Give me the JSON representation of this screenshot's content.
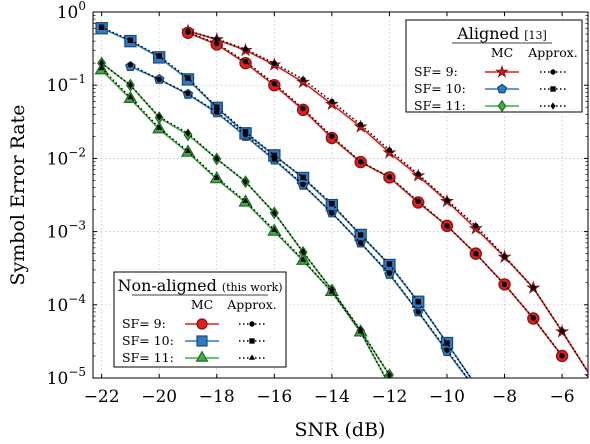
{
  "chart_data": {
    "type": "line",
    "xlabel": "SNR (dB)",
    "ylabel": "Symbol Error Rate",
    "xlim": [
      -22.3,
      -5.1
    ],
    "ylim": [
      1e-05,
      1
    ],
    "yscale": "log",
    "grid": true,
    "x_ticks": [
      {
        "value": -22,
        "label": "−22"
      },
      {
        "value": -20,
        "label": "−20"
      },
      {
        "value": -18,
        "label": "−18"
      },
      {
        "value": -16,
        "label": "−16"
      },
      {
        "value": -14,
        "label": "−14"
      },
      {
        "value": -12,
        "label": "−12"
      },
      {
        "value": -10,
        "label": "−10"
      },
      {
        "value": -8,
        "label": "−8"
      },
      {
        "value": -6,
        "label": "−6"
      }
    ],
    "y_ticks": [
      {
        "value": 1,
        "base": "10",
        "exp": "0"
      },
      {
        "value": 0.1,
        "base": "10",
        "exp": "−1"
      },
      {
        "value": 0.01,
        "base": "10",
        "exp": "−2"
      },
      {
        "value": 0.001,
        "base": "10",
        "exp": "−3"
      },
      {
        "value": 0.0001,
        "base": "10",
        "exp": "−4"
      },
      {
        "value": 1e-05,
        "base": "10",
        "exp": "−5"
      }
    ],
    "colors": {
      "sf9": "#e0201c",
      "sf10": "#2e7bc4",
      "sf11": "#3cb043"
    },
    "legends": {
      "aligned": {
        "title": "Aligned",
        "ref": "[13]",
        "col_mc": "MC",
        "col_approx": "Approx.",
        "rows": [
          {
            "label": "SF= 9:",
            "color": "#e0201c",
            "marker": "star",
            "approx_marker": "circle"
          },
          {
            "label": "SF= 10:",
            "color": "#2e7bc4",
            "marker": "pentagon",
            "approx_marker": "square"
          },
          {
            "label": "SF= 11:",
            "color": "#3cb043",
            "marker": "diamond",
            "approx_marker": "diamond"
          }
        ]
      },
      "nonaligned": {
        "title": "Non-aligned",
        "ref": "(this work)",
        "col_mc": "MC",
        "col_approx": "Approx.",
        "rows": [
          {
            "label": "SF= 9:",
            "color": "#e0201c",
            "marker": "circle",
            "approx_marker": "circle"
          },
          {
            "label": "SF= 10:",
            "color": "#2e7bc4",
            "marker": "square",
            "approx_marker": "square"
          },
          {
            "label": "SF= 11:",
            "color": "#3cb043",
            "marker": "triangle",
            "approx_marker": "triangle"
          }
        ]
      }
    },
    "series": [
      {
        "group": "aligned",
        "kind": "mc",
        "sf": 9,
        "color": "#e0201c",
        "marker": "star",
        "x": [
          -19,
          -18,
          -17,
          -16,
          -15,
          -14,
          -13,
          -12,
          -11,
          -10,
          -9,
          -8,
          -7,
          -6,
          -5
        ],
        "y": [
          0.55,
          0.42,
          0.3,
          0.19,
          0.11,
          0.055,
          0.027,
          0.012,
          0.0058,
          0.0026,
          0.0011,
          0.00045,
          0.00017,
          4.3e-05,
          1.05e-05
        ]
      },
      {
        "group": "aligned",
        "kind": "approx",
        "sf": 9,
        "color": "#000000",
        "marker": "circle",
        "x": [
          -19,
          -18,
          -17,
          -16,
          -15,
          -14,
          -13,
          -12,
          -11,
          -10,
          -9,
          -8,
          -7,
          -6,
          -5
        ],
        "y": [
          0.55,
          0.43,
          0.31,
          0.2,
          0.12,
          0.06,
          0.029,
          0.013,
          0.0061,
          0.0027,
          0.0012,
          0.00046,
          0.00017,
          4.4e-05,
          1.05e-05
        ]
      },
      {
        "group": "aligned",
        "kind": "mc",
        "sf": 10,
        "color": "#2e7bc4",
        "marker": "pentagon",
        "x": [
          -21,
          -20,
          -19,
          -18,
          -17,
          -16,
          -15,
          -14,
          -13,
          -12,
          -11,
          -10,
          -9
        ],
        "y": [
          0.18,
          0.12,
          0.075,
          0.042,
          0.02,
          0.0095,
          0.0043,
          0.0018,
          0.0007,
          0.00026,
          8e-05,
          2.3e-05,
          7e-06
        ]
      },
      {
        "group": "aligned",
        "kind": "approx",
        "sf": 10,
        "color": "#000000",
        "marker": "circle",
        "x": [
          -21,
          -20,
          -19,
          -18,
          -17,
          -16,
          -15,
          -14,
          -13,
          -12,
          -11,
          -10,
          -9
        ],
        "y": [
          0.19,
          0.12,
          0.077,
          0.043,
          0.021,
          0.0098,
          0.0044,
          0.0018,
          0.0007,
          0.00027,
          8e-05,
          2.4e-05,
          7e-06
        ]
      },
      {
        "group": "aligned",
        "kind": "mc",
        "sf": 11,
        "color": "#3cb043",
        "marker": "diamond",
        "x": [
          -22,
          -21,
          -20,
          -19,
          -18,
          -17,
          -16,
          -15,
          -14,
          -13,
          -12
        ],
        "y": [
          0.2,
          0.1,
          0.036,
          0.021,
          0.0098,
          0.0048,
          0.0018,
          0.00052,
          0.00016,
          4.4e-05,
          1.1e-05
        ]
      },
      {
        "group": "aligned",
        "kind": "approx",
        "sf": 11,
        "color": "#000000",
        "marker": "diamond",
        "x": [
          -22,
          -21,
          -20,
          -19,
          -18,
          -17,
          -16,
          -15,
          -14,
          -13,
          -12
        ],
        "y": [
          0.2,
          0.1,
          0.037,
          0.022,
          0.0099,
          0.0048,
          0.0018,
          0.00053,
          0.00016,
          4.5e-05,
          1.1e-05
        ]
      },
      {
        "group": "nonaligned",
        "kind": "mc",
        "sf": 9,
        "color": "#e0201c",
        "marker": "circle",
        "x": [
          -19,
          -18,
          -17,
          -16,
          -15,
          -14,
          -13,
          -12,
          -11,
          -10,
          -9,
          -8,
          -7,
          -6
        ],
        "y": [
          0.52,
          0.36,
          0.2,
          0.1,
          0.046,
          0.019,
          0.0089,
          0.0055,
          0.0025,
          0.0012,
          0.0005,
          0.00019,
          6.5e-05,
          2e-05
        ]
      },
      {
        "group": "nonaligned",
        "kind": "approx",
        "sf": 9,
        "color": "#000000",
        "marker": "circle",
        "x": [
          -19,
          -18,
          -17,
          -16,
          -15,
          -14,
          -13,
          -12,
          -11,
          -10,
          -9,
          -8,
          -7,
          -6
        ],
        "y": [
          0.53,
          0.37,
          0.21,
          0.105,
          0.048,
          0.02,
          0.009,
          0.0056,
          0.0026,
          0.0012,
          0.0005,
          0.00019,
          6.6e-05,
          2e-05
        ]
      },
      {
        "group": "nonaligned",
        "kind": "mc",
        "sf": 10,
        "color": "#2e7bc4",
        "marker": "square",
        "x": [
          -22,
          -21,
          -20,
          -19,
          -18,
          -17,
          -16,
          -15,
          -14,
          -13,
          -12,
          -11,
          -10,
          -9
        ],
        "y": [
          0.6,
          0.4,
          0.24,
          0.12,
          0.049,
          0.022,
          0.011,
          0.0054,
          0.0023,
          0.0009,
          0.00035,
          0.00011,
          3e-05,
          8e-06
        ]
      },
      {
        "group": "nonaligned",
        "kind": "approx",
        "sf": 10,
        "color": "#000000",
        "marker": "square",
        "x": [
          -22,
          -21,
          -20,
          -19,
          -18,
          -17,
          -16,
          -15,
          -14,
          -13,
          -12,
          -11,
          -10,
          -9
        ],
        "y": [
          0.62,
          0.41,
          0.25,
          0.125,
          0.05,
          0.023,
          0.011,
          0.0055,
          0.0024,
          0.0009,
          0.00036,
          0.00011,
          3e-05,
          8e-06
        ]
      },
      {
        "group": "nonaligned",
        "kind": "mc",
        "sf": 11,
        "color": "#3cb043",
        "marker": "triangle",
        "x": [
          -22,
          -21,
          -20,
          -19,
          -18,
          -17,
          -16,
          -15,
          -14,
          -13,
          -12
        ],
        "y": [
          0.16,
          0.065,
          0.025,
          0.012,
          0.0052,
          0.0025,
          0.001,
          0.0004,
          0.00015,
          4.2e-05,
          8e-06
        ]
      },
      {
        "group": "nonaligned",
        "kind": "approx",
        "sf": 11,
        "color": "#000000",
        "marker": "triangle",
        "x": [
          -22,
          -21,
          -20,
          -19,
          -18,
          -17,
          -16,
          -15,
          -14,
          -13,
          -12
        ],
        "y": [
          0.17,
          0.068,
          0.026,
          0.0125,
          0.0054,
          0.0026,
          0.00105,
          0.00041,
          0.00015,
          4.3e-05,
          8e-06
        ]
      }
    ]
  }
}
